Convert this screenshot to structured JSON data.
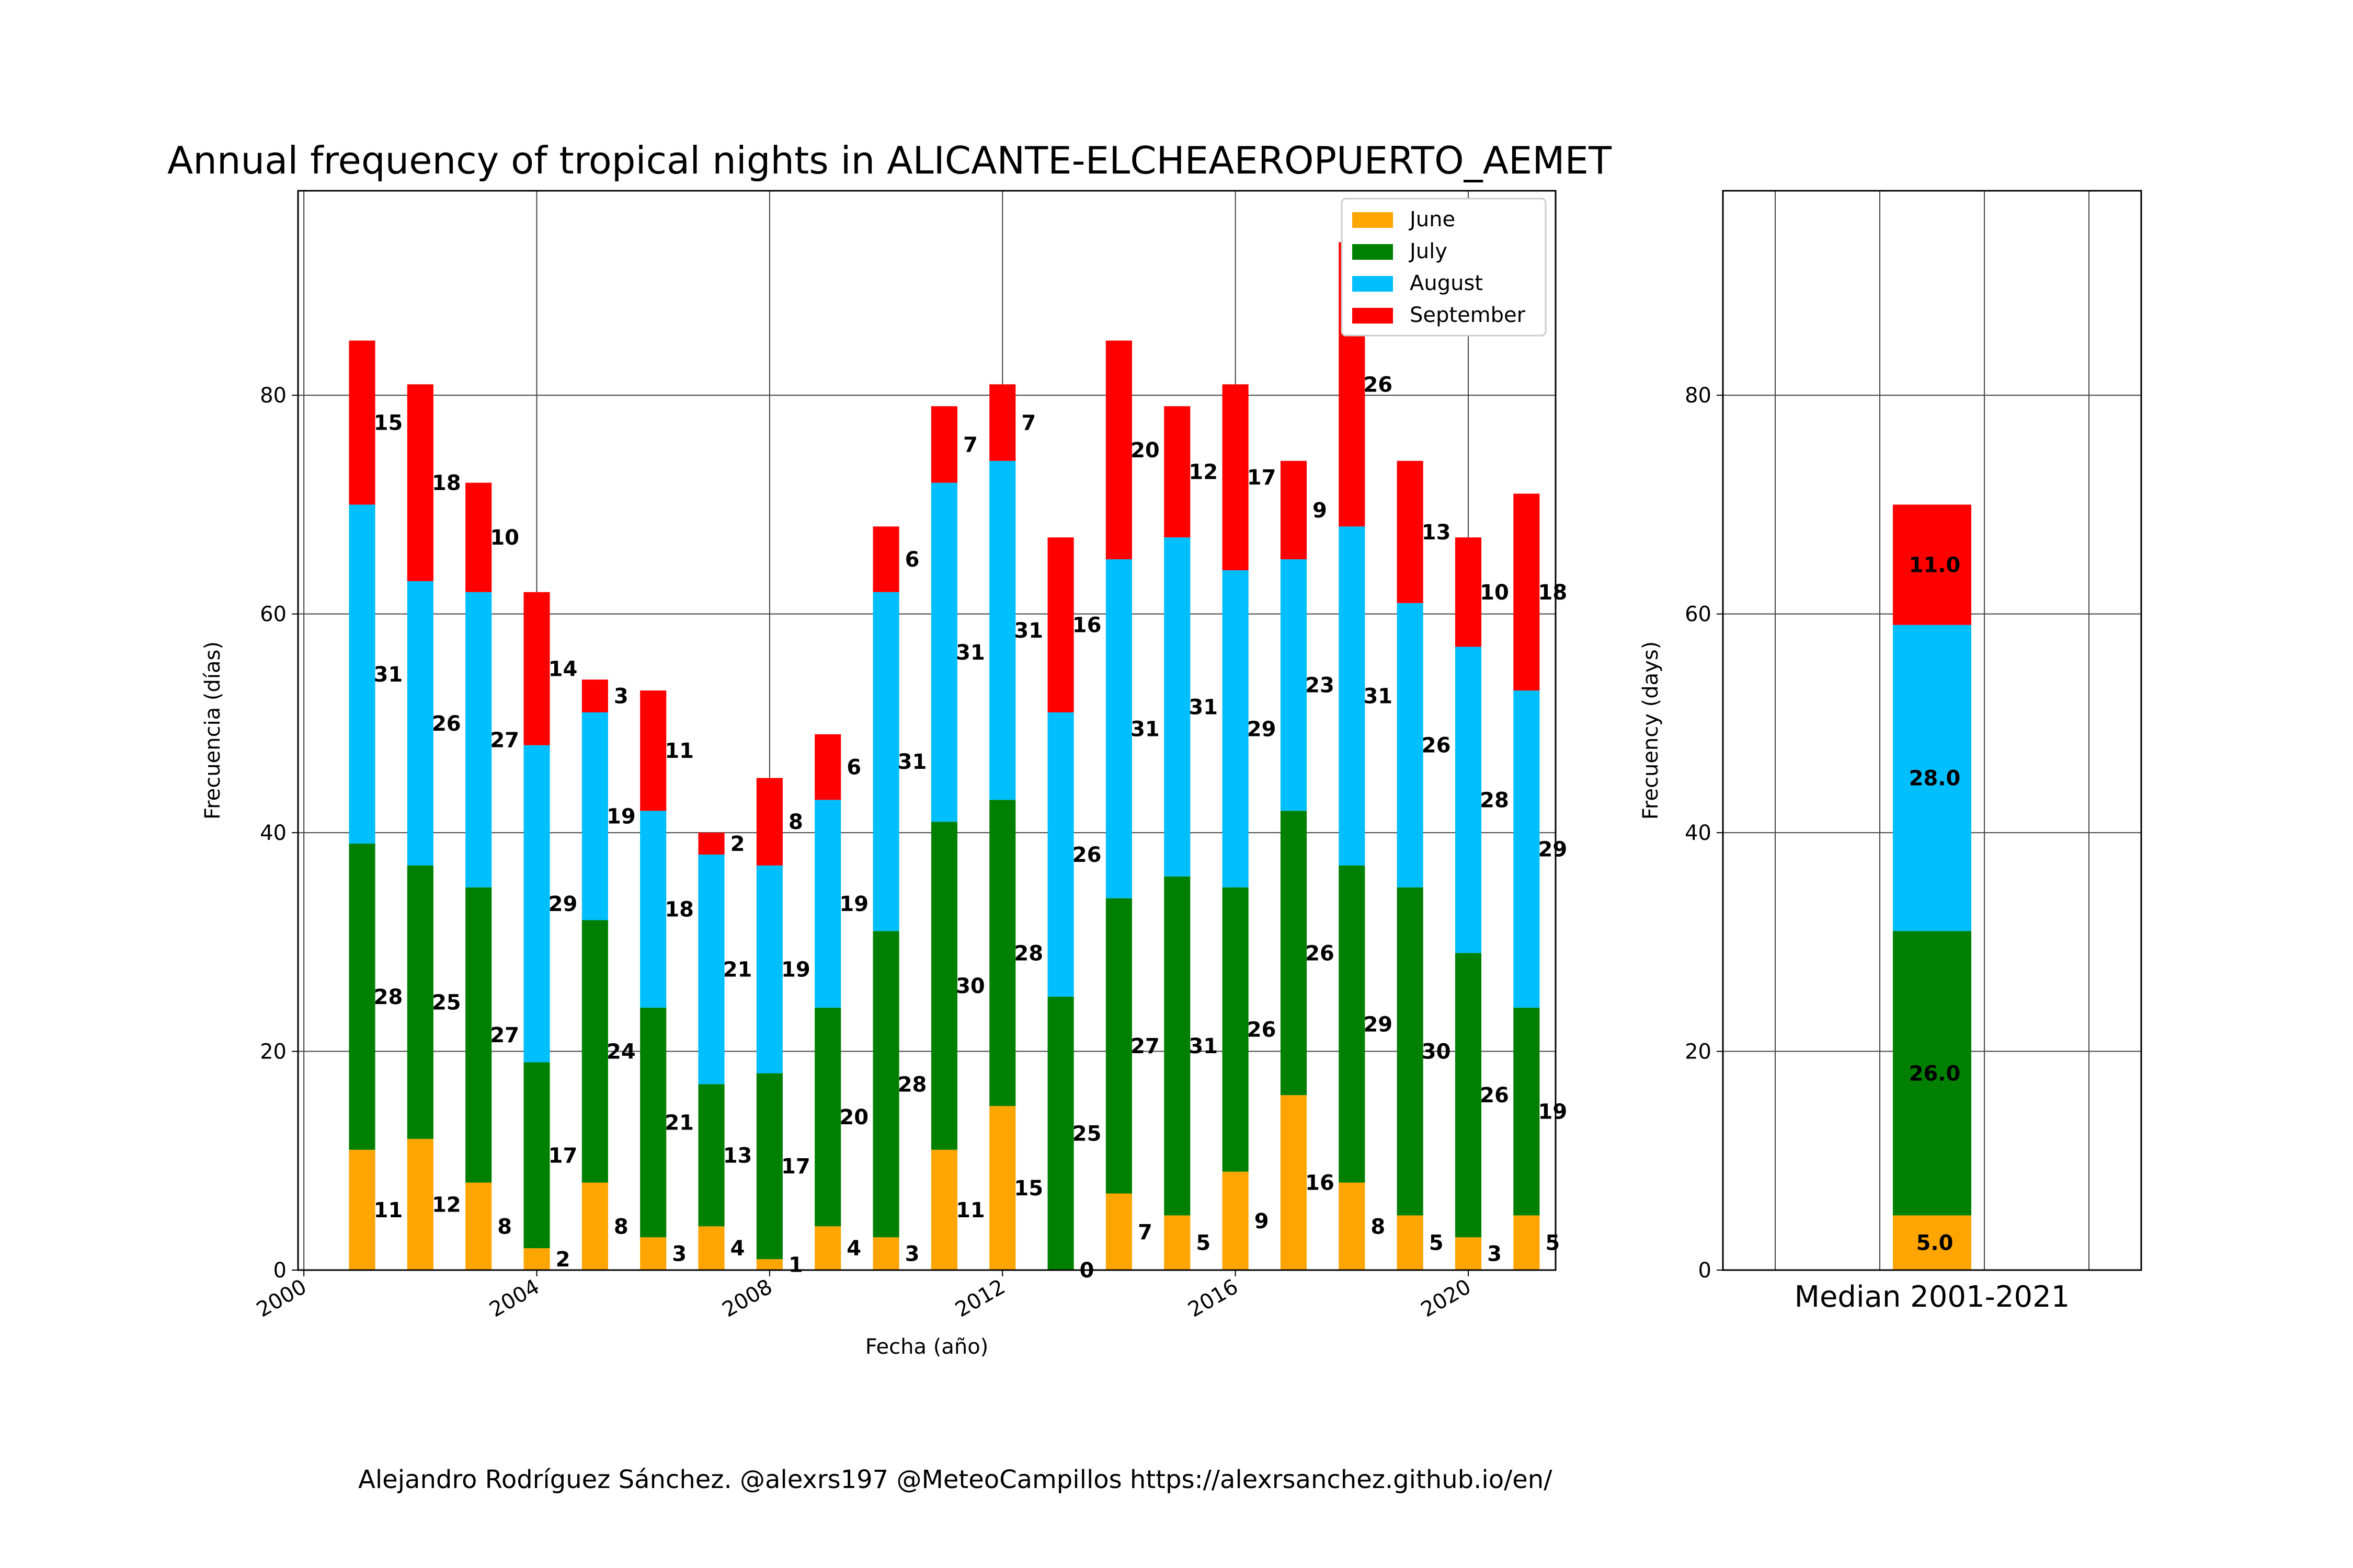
{
  "footer": "Alejandro Rodríguez Sánchez. @alexrs197 @MeteoCampillos   https://alexrsanchez.github.io/en/",
  "chart_data": [
    {
      "type": "bar",
      "stacked": true,
      "title": "Annual frequency of tropical nights in ALICANTE-ELCHEAEROPUERTO_AEMET",
      "xlabel": "Fecha (año)",
      "ylabel": "Frecuencia (días)",
      "xlim": [
        1999.9,
        2021.5
      ],
      "ylim": [
        0,
        98.7
      ],
      "xticks": [
        2000,
        2004,
        2008,
        2012,
        2016,
        2020
      ],
      "yticks": [
        0,
        20,
        40,
        60,
        80
      ],
      "grid": true,
      "legend_position": "upper right",
      "x": [
        2001,
        2002,
        2003,
        2004,
        2005,
        2006,
        2007,
        2008,
        2009,
        2010,
        2011,
        2012,
        2013,
        2014,
        2015,
        2016,
        2017,
        2018,
        2019,
        2020,
        2021
      ],
      "series": [
        {
          "name": "June",
          "color": "#ffa500",
          "values": [
            11,
            12,
            8,
            2,
            8,
            3,
            4,
            1,
            4,
            3,
            11,
            15,
            0,
            7,
            5,
            9,
            16,
            8,
            5,
            3,
            5
          ]
        },
        {
          "name": "July",
          "color": "#008000",
          "values": [
            28,
            25,
            27,
            17,
            24,
            21,
            13,
            17,
            20,
            28,
            30,
            28,
            25,
            27,
            31,
            26,
            26,
            29,
            30,
            26,
            19
          ]
        },
        {
          "name": "August",
          "color": "#00bfff",
          "values": [
            31,
            26,
            27,
            29,
            19,
            18,
            21,
            19,
            19,
            31,
            31,
            31,
            26,
            31,
            31,
            29,
            23,
            31,
            26,
            28,
            29
          ]
        },
        {
          "name": "September",
          "color": "#ff0000",
          "values": [
            15,
            18,
            10,
            14,
            3,
            11,
            2,
            8,
            6,
            6,
            7,
            7,
            16,
            20,
            12,
            17,
            9,
            26,
            13,
            10,
            18
          ]
        }
      ]
    },
    {
      "type": "bar",
      "stacked": true,
      "xlabel": "Median 2001-2021",
      "ylabel": "Frecuency (days)",
      "ylim": [
        0,
        98.7
      ],
      "yticks": [
        0,
        20,
        40,
        60,
        80
      ],
      "grid": true,
      "series": [
        {
          "name": "June",
          "color": "#ffa500",
          "value": 5.0,
          "label": "5.0"
        },
        {
          "name": "July",
          "color": "#008000",
          "value": 26.0,
          "label": "26.0"
        },
        {
          "name": "August",
          "color": "#00bfff",
          "value": 28.0,
          "label": "28.0"
        },
        {
          "name": "September",
          "color": "#ff0000",
          "value": 11.0,
          "label": "11.0"
        }
      ]
    }
  ]
}
